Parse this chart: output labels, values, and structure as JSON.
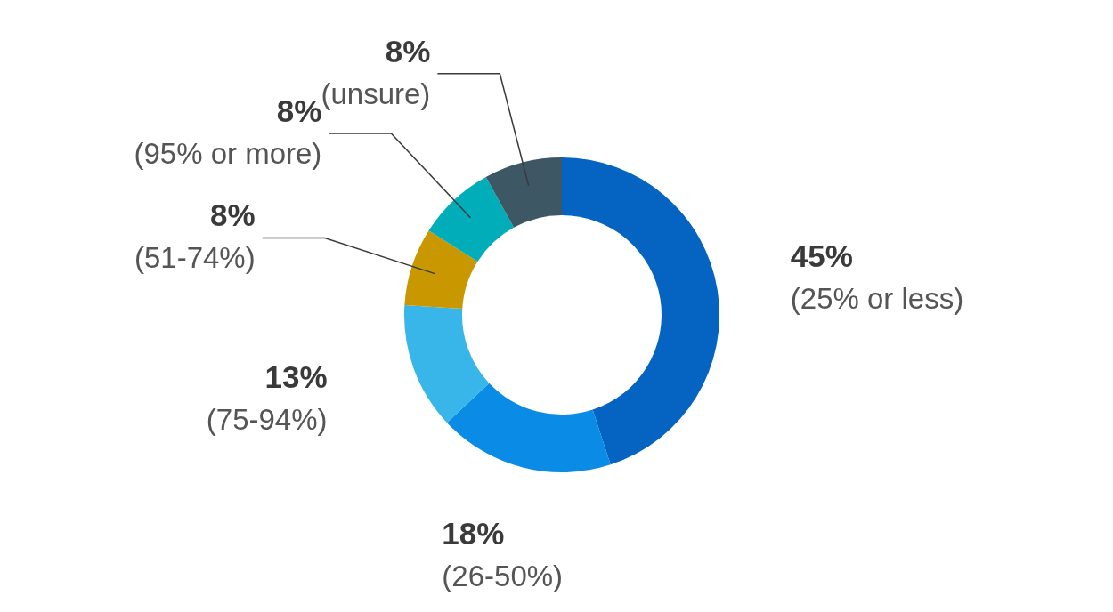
{
  "chart_data": {
    "type": "donut",
    "categories": [
      "(25% or less)",
      "(26-50%)",
      "(75-94%)",
      "(51-74%)",
      "(95% or more)",
      "(unsure)"
    ],
    "values": [
      45,
      18,
      13,
      8,
      8,
      8
    ],
    "value_labels": [
      "45%",
      "18%",
      "13%",
      "8%",
      "8%",
      "8%"
    ],
    "colors": [
      "#0563c1",
      "#0a8ce6",
      "#38b6ea",
      "#c99700",
      "#00adb9",
      "#3d5764"
    ]
  }
}
